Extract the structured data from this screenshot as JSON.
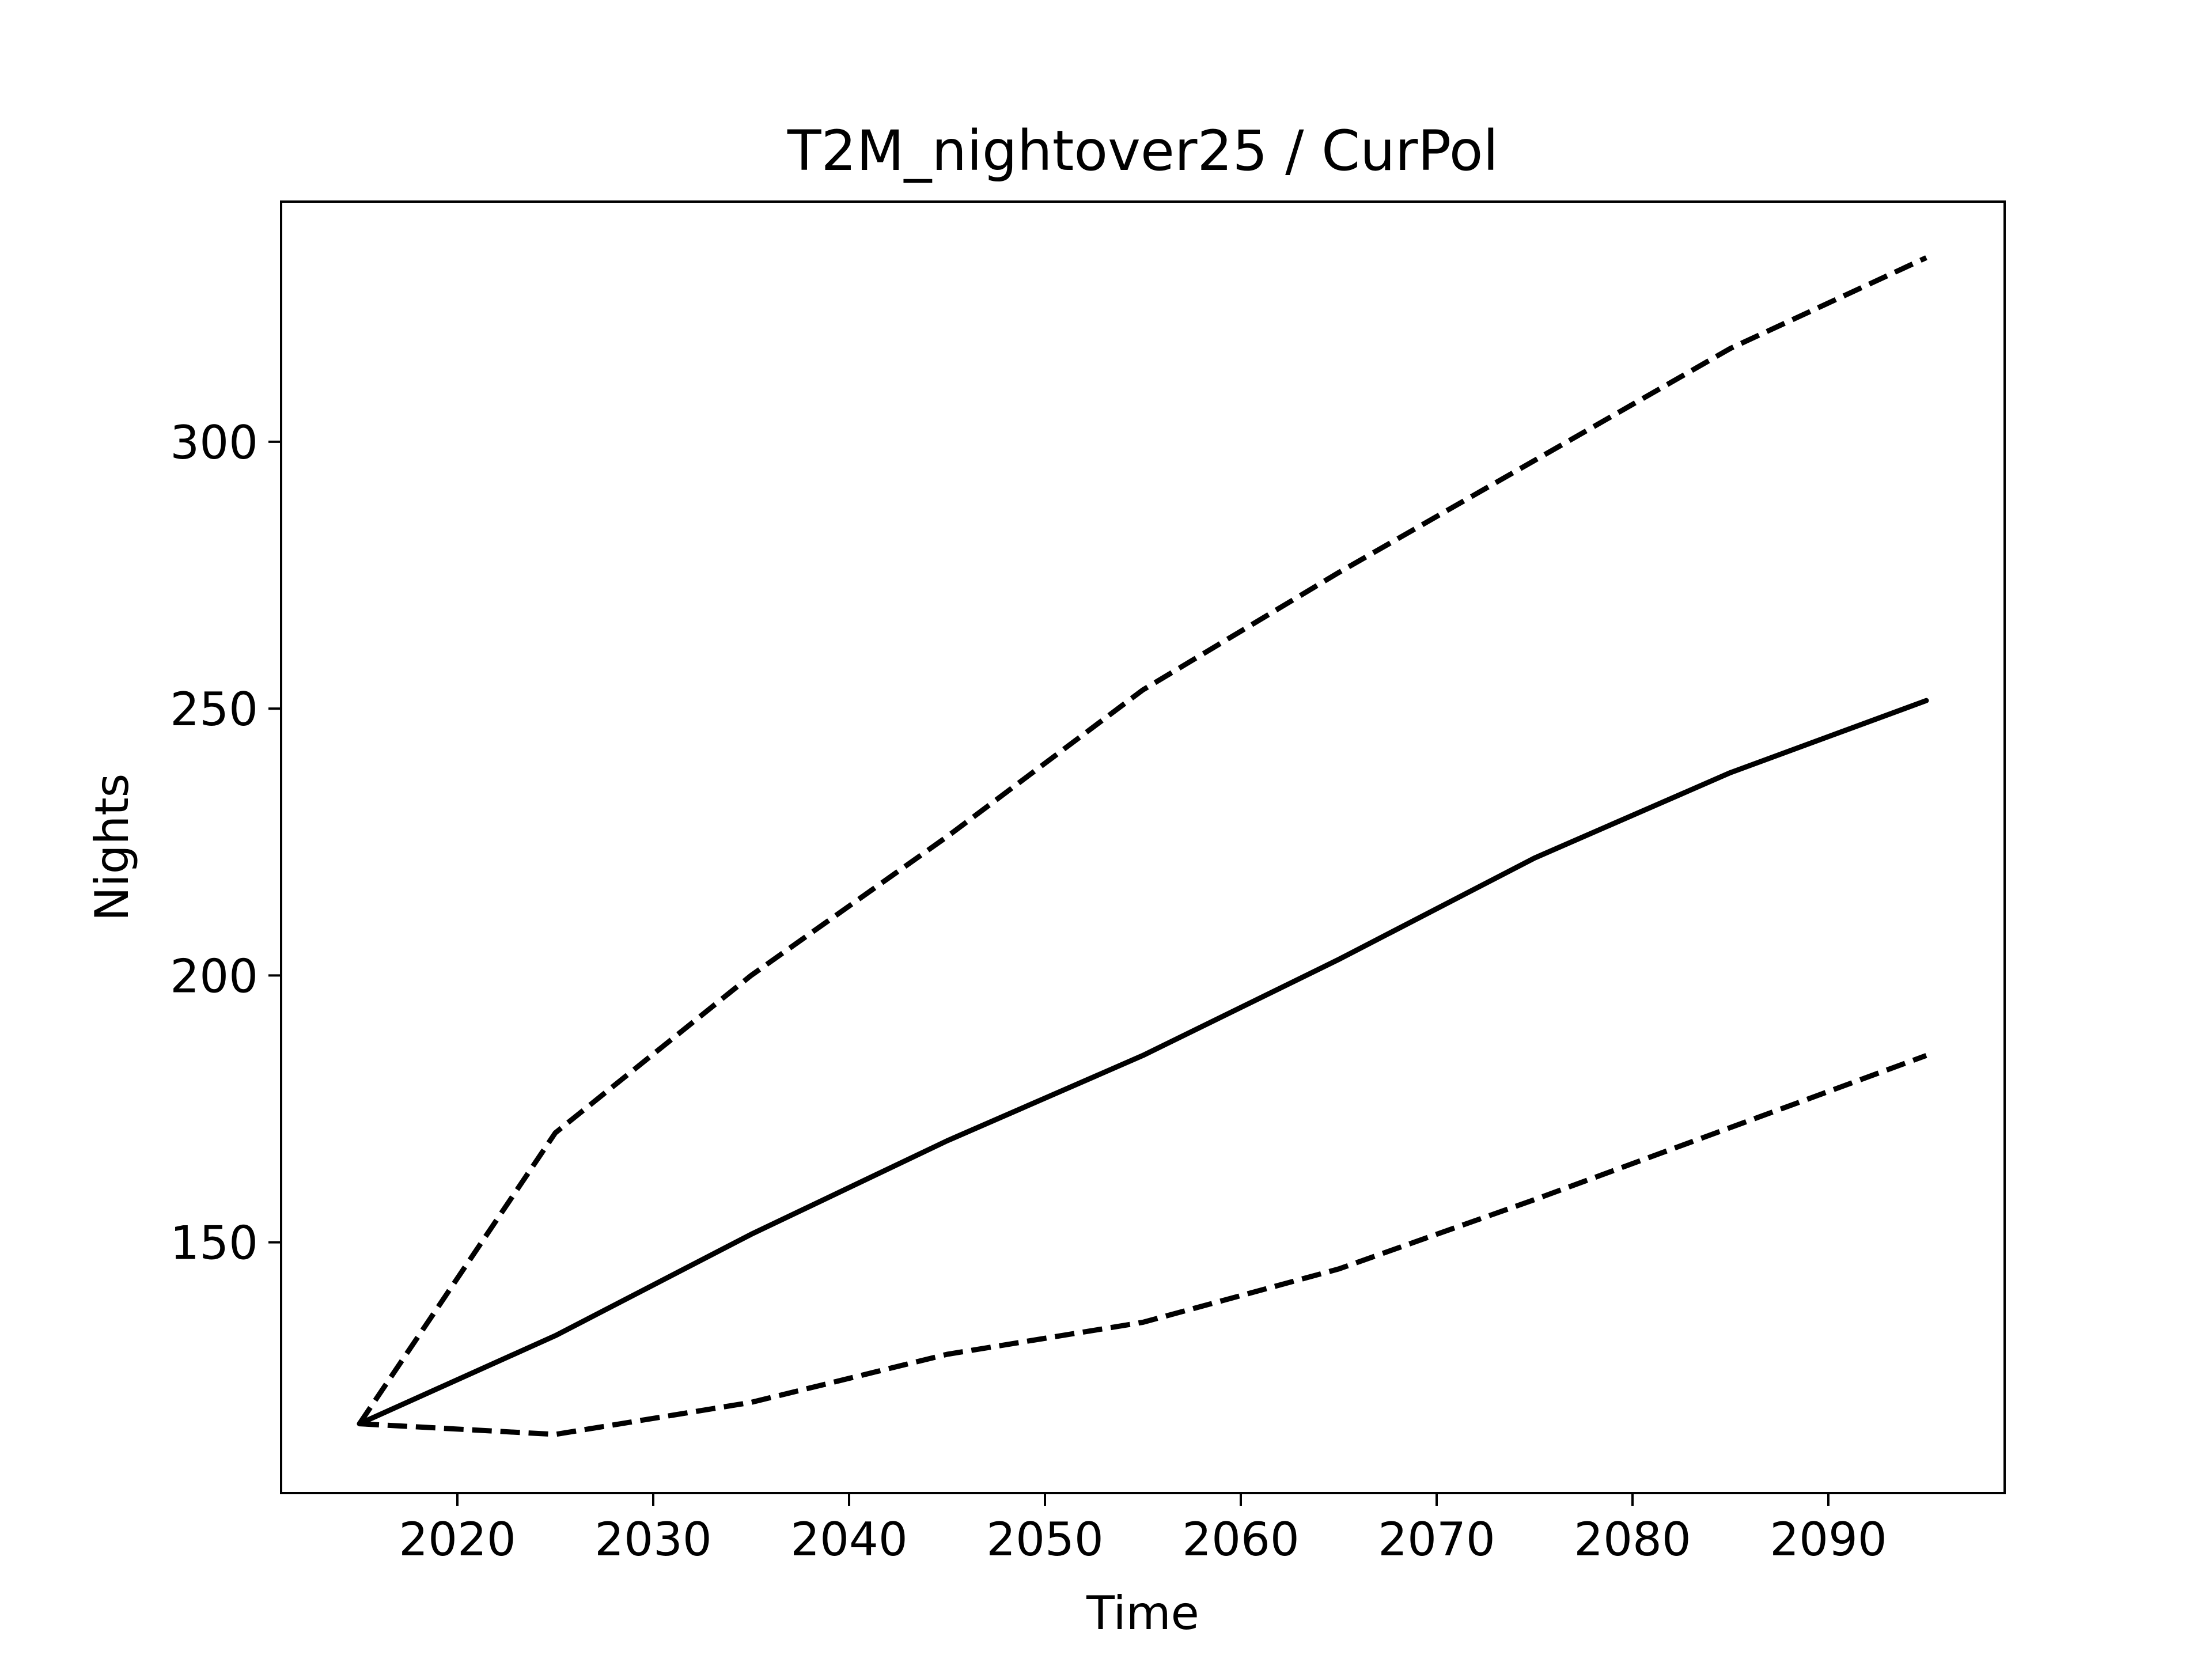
{
  "chart_data": {
    "type": "line",
    "title": "T2M_nightover25 / CurPol",
    "xlabel": "Time",
    "ylabel": "Nights",
    "xlim": [
      2011,
      2099
    ],
    "ylim": [
      103,
      345
    ],
    "xticks": [
      2020,
      2030,
      2040,
      2050,
      2060,
      2070,
      2080,
      2090
    ],
    "yticks": [
      150,
      200,
      250,
      300
    ],
    "grid": false,
    "legend": "none",
    "x": [
      2015,
      2025,
      2035,
      2045,
      2055,
      2065,
      2075,
      2085,
      2095
    ],
    "series": [
      {
        "style": "solid",
        "color": "#000000",
        "values": [
          116,
          132.5,
          151.5,
          169,
          185,
          203,
          222,
          238,
          251.5
        ]
      },
      {
        "style": "dashed",
        "color": "#000000",
        "values": [
          116,
          170.5,
          200,
          226,
          253.5,
          275.5,
          296.5,
          317.5,
          334.5
        ]
      },
      {
        "style": "dashed",
        "color": "#000000",
        "values": [
          116,
          114,
          120,
          129,
          135,
          145,
          158,
          171.5,
          185
        ]
      }
    ]
  }
}
